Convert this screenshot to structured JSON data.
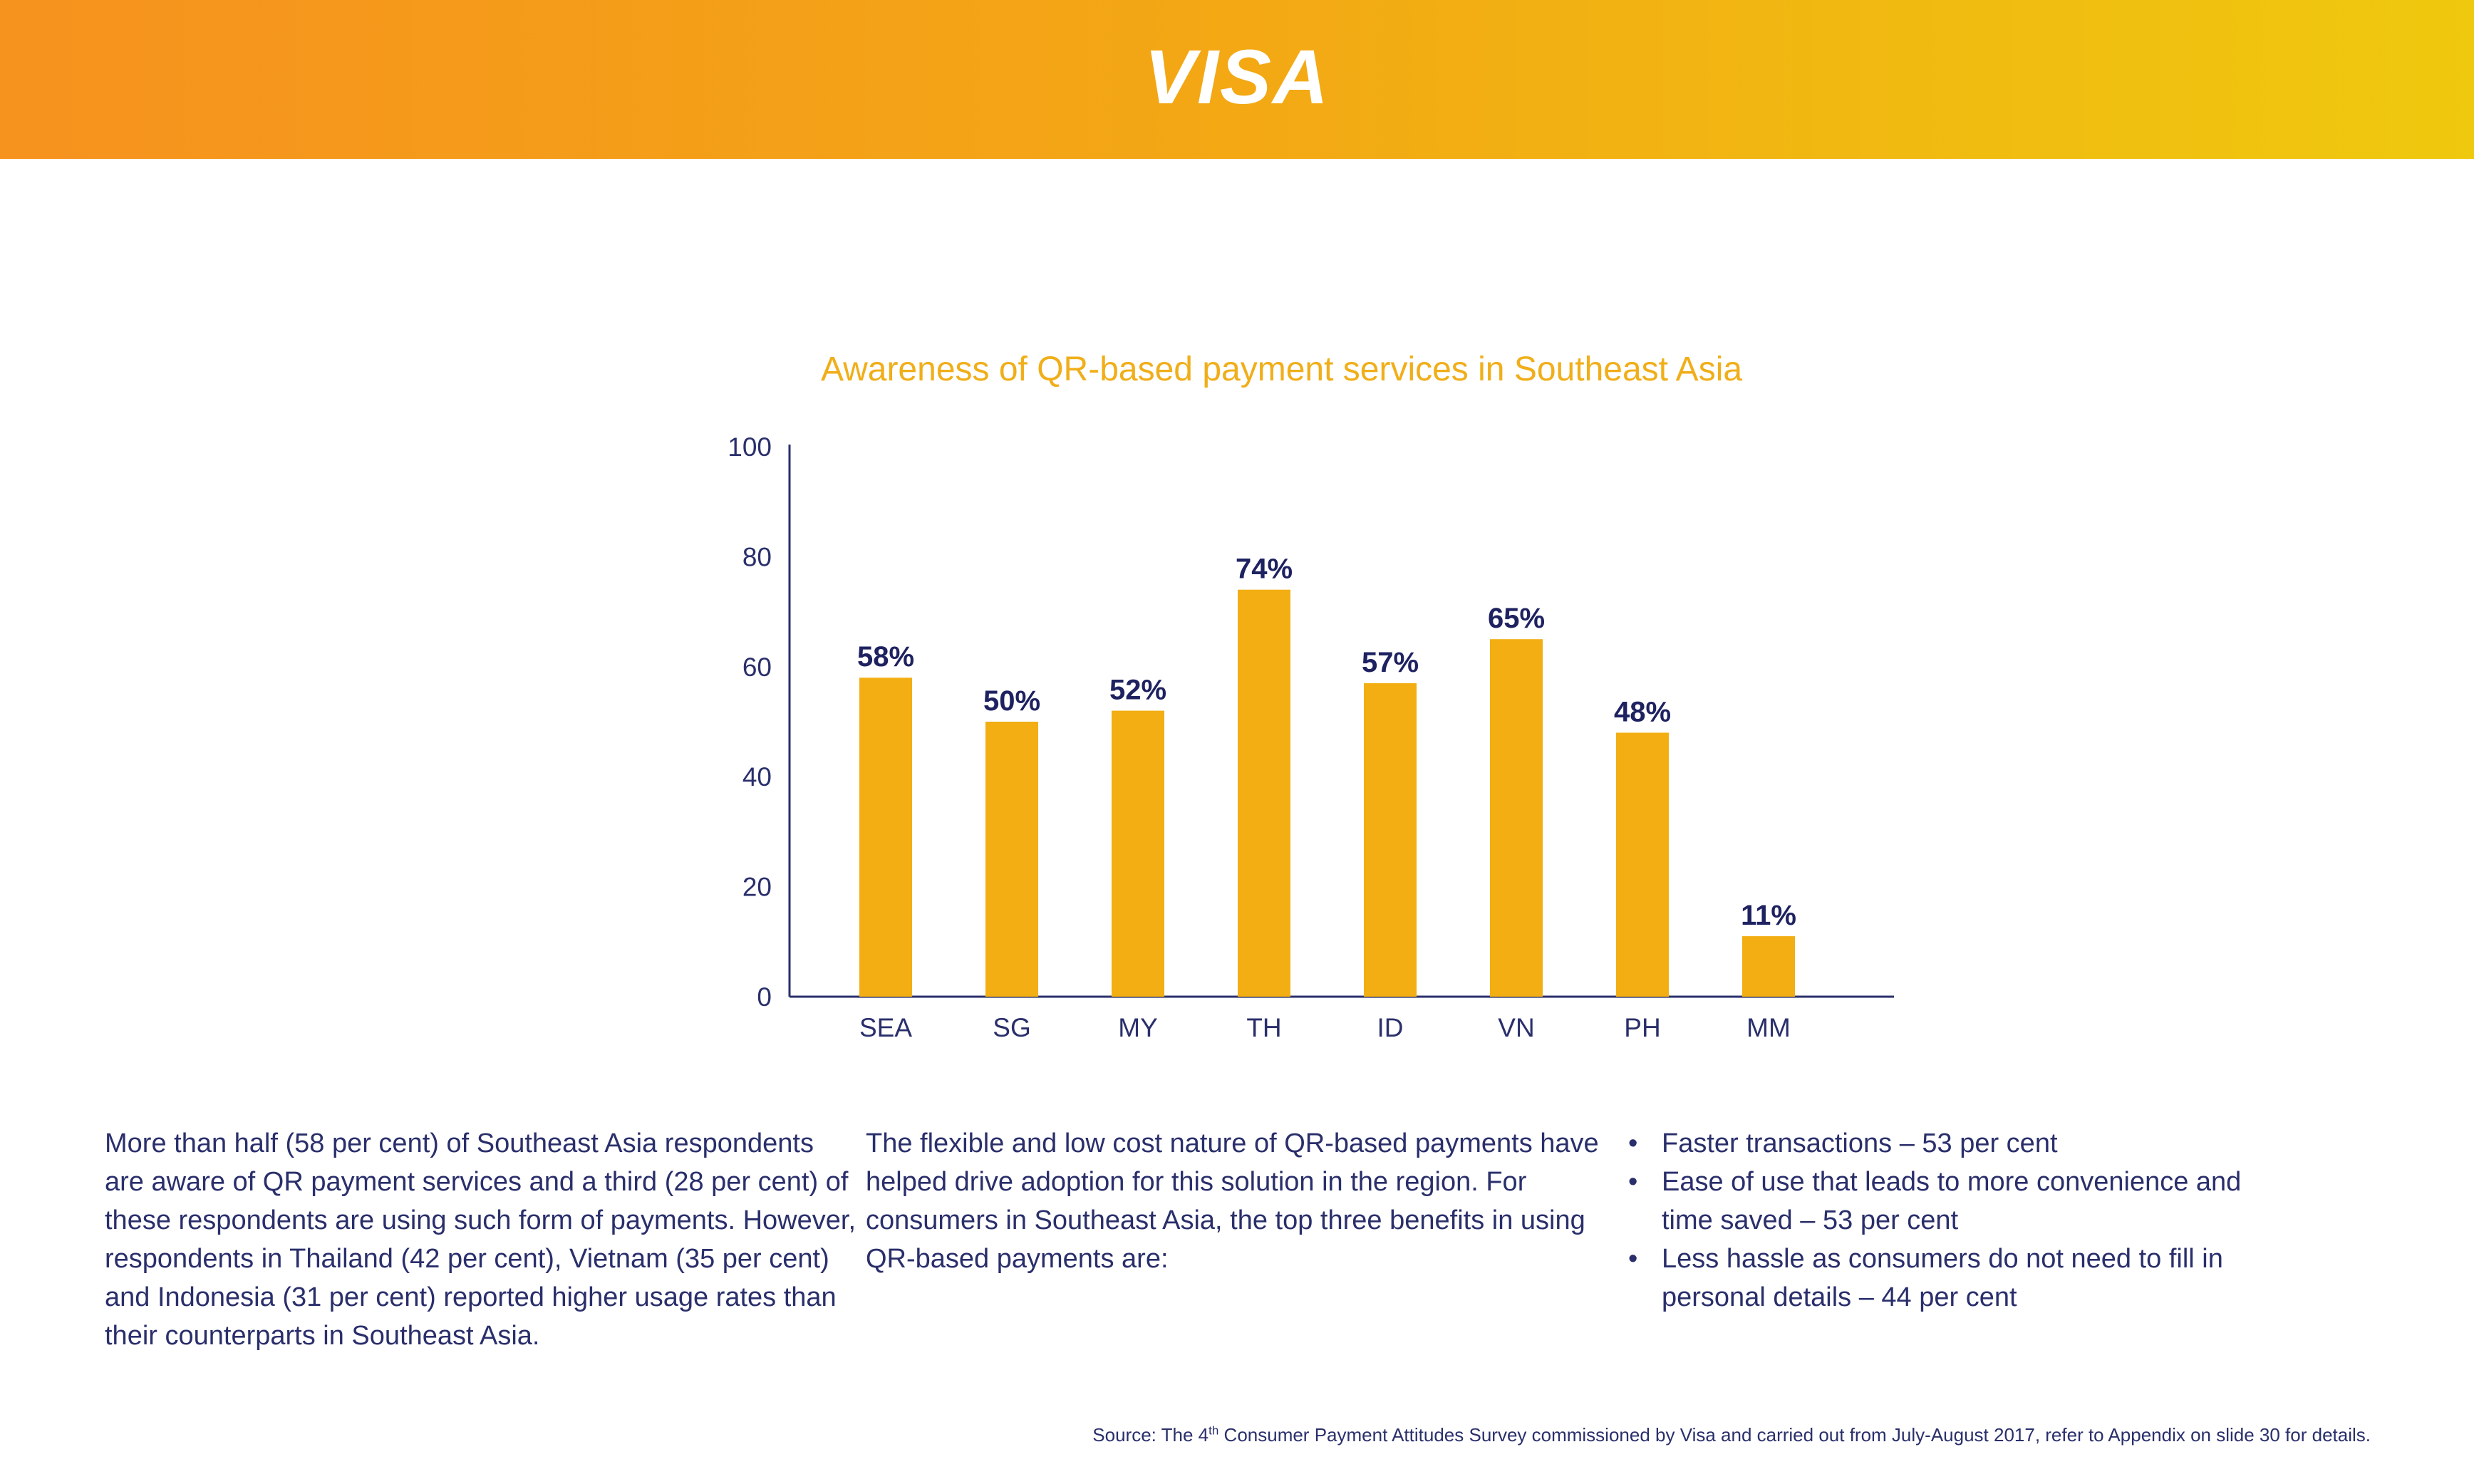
{
  "header": {
    "logo_text": "VISA",
    "gradient_start": "#f6921e",
    "gradient_end": "#efc90e"
  },
  "chart_data": {
    "type": "bar",
    "title": "Awareness of QR-based payment services in Southeast Asia",
    "xlabel": "",
    "ylabel": "",
    "categories": [
      "SEA",
      "SG",
      "MY",
      "TH",
      "ID",
      "VN",
      "PH",
      "MM"
    ],
    "values": [
      58,
      50,
      52,
      74,
      57,
      65,
      48,
      11
    ],
    "value_labels": [
      "58%",
      "50%",
      "52%",
      "74%",
      "57%",
      "65%",
      "48%",
      "11%"
    ],
    "yticks": [
      "0",
      "20",
      "40",
      "60",
      "80",
      "100"
    ],
    "ylim": [
      0,
      100
    ],
    "grid": false,
    "legend": "none",
    "bar_color": "#f2ae12",
    "axis_color": "#2a2f6b",
    "value_label_color": "#1e2260",
    "title_color": "#f0ae19"
  },
  "text": {
    "para1": "More than half (58 per cent) of Southeast Asia respondents are aware of QR payment services and a third (28 per cent) of these respondents are using such form of payments. However, respondents in Thailand (42 per cent), Vietnam (35 per cent) and Indonesia (31 per cent) reported higher usage rates than their counterparts in Southeast Asia.",
    "para2": "The flexible and low cost nature of QR-based payments have helped drive adoption for this solution in the region. For consumers in Southeast Asia, the top three benefits in using QR-based payments are:",
    "benefits": [
      "Faster transactions – 53 per cent",
      "Ease of use that leads to more convenience and time saved – 53 per cent",
      "Less hassle as consumers do not need to fill in personal details – 44 per cent"
    ],
    "bullet_char": "•"
  },
  "source": {
    "prefix": "Source: The 4",
    "superscript": "th",
    "suffix": " Consumer Payment Attitudes Survey commissioned by Visa and carried out from July-August 2017, refer to Appendix on slide 30 for details."
  }
}
